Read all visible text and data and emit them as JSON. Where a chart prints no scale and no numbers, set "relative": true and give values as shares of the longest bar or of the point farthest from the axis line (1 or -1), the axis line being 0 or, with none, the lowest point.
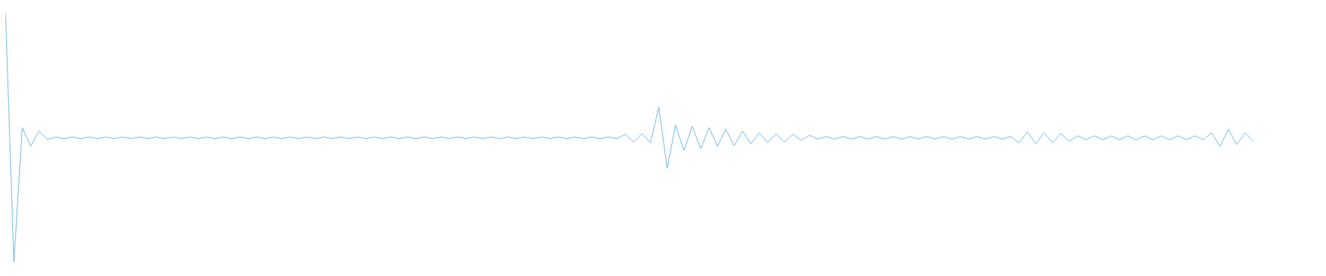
{
  "chart_data": {
    "type": "line",
    "relative": true,
    "categories": [
      null,
      null,
      null,
      null,
      null,
      null,
      null,
      null,
      null,
      null,
      null,
      null,
      null,
      null,
      null,
      null,
      null,
      null,
      null,
      null,
      null,
      null,
      null,
      null,
      null,
      null,
      null,
      null,
      null,
      null,
      null,
      null,
      null,
      null,
      null,
      null,
      null,
      null,
      null,
      null,
      null,
      null,
      null,
      null,
      null,
      null,
      null,
      null,
      null,
      null,
      null,
      null,
      null,
      null,
      null,
      null,
      null,
      null,
      null,
      null,
      null,
      null,
      null,
      null,
      null,
      null,
      null,
      null,
      null,
      null,
      null,
      null,
      null,
      null,
      null,
      null,
      null,
      null,
      null,
      null,
      null,
      null,
      null,
      null,
      null,
      null,
      null,
      null,
      null,
      null,
      null,
      null,
      null,
      null,
      null,
      null,
      null,
      null,
      null,
      null,
      null,
      null,
      null,
      null,
      null,
      null,
      null,
      null,
      null,
      null,
      null,
      null,
      null,
      null,
      null,
      null,
      null,
      null,
      null,
      null,
      null,
      null,
      null,
      null,
      null,
      null,
      null,
      null,
      null,
      null,
      null,
      null,
      null,
      null,
      null,
      null,
      null,
      null,
      null,
      null,
      null,
      null,
      null,
      null,
      null,
      null,
      null,
      null,
      null,
      null,
      null,
      null,
      null,
      null,
      null,
      null,
      null,
      null
    ],
    "series": [
      {
        "color": "#5dade2",
        "values": [
          1,
          0,
          0.539,
          0.464,
          0.525,
          0.491,
          0.501,
          0.495,
          0.501,
          0.495,
          0.501,
          0.495,
          0.501,
          0.495,
          0.501,
          0.495,
          0.501,
          0.495,
          0.501,
          0.495,
          0.501,
          0.495,
          0.501,
          0.495,
          0.501,
          0.495,
          0.501,
          0.495,
          0.501,
          0.495,
          0.501,
          0.495,
          0.501,
          0.495,
          0.501,
          0.495,
          0.501,
          0.495,
          0.501,
          0.495,
          0.501,
          0.495,
          0.501,
          0.495,
          0.501,
          0.495,
          0.501,
          0.495,
          0.501,
          0.495,
          0.501,
          0.495,
          0.501,
          0.495,
          0.501,
          0.495,
          0.501,
          0.495,
          0.501,
          0.495,
          0.501,
          0.495,
          0.501,
          0.495,
          0.501,
          0.495,
          0.501,
          0.495,
          0.501,
          0.495,
          0.501,
          0.495,
          0.501,
          0.495,
          0.512,
          0.481,
          0.515,
          0.478,
          0.62,
          0.376,
          0.549,
          0.447,
          0.545,
          0.454,
          0.539,
          0.464,
          0.532,
          0.467,
          0.525,
          0.474,
          0.518,
          0.478,
          0.515,
          0.481,
          0.512,
          0.488,
          0.508,
          0.493,
          0.503,
          0.493,
          0.503,
          0.493,
          0.503,
          0.493,
          0.503,
          0.493,
          0.503,
          0.493,
          0.503,
          0.493,
          0.503,
          0.493,
          0.503,
          0.493,
          0.503,
          0.493,
          0.503,
          0.493,
          0.503,
          0.493,
          0.503,
          0.478,
          0.522,
          0.474,
          0.518,
          0.478,
          0.515,
          0.484,
          0.506,
          0.49,
          0.506,
          0.49,
          0.506,
          0.49,
          0.506,
          0.49,
          0.506,
          0.49,
          0.506,
          0.49,
          0.506,
          0.49,
          0.506,
          0.49,
          0.518,
          0.464,
          0.532,
          0.471,
          0.518,
          0.484,
          null,
          null,
          null,
          null,
          null,
          null,
          null,
          null
        ]
      }
    ]
  }
}
